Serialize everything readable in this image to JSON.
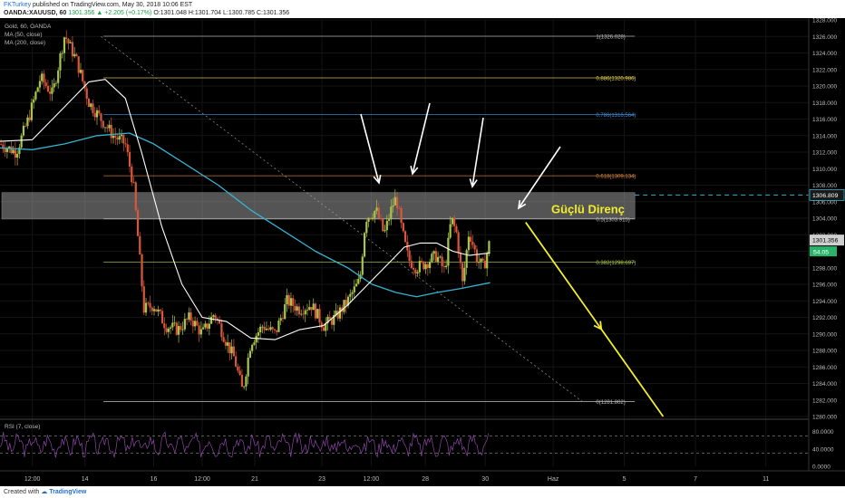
{
  "header": {
    "user": "FKTurkey",
    "published": "published on TradingView.com, May 30, 2018 10:06 EST",
    "ticker": "OANDA:XAUUSD, 60",
    "change": "1301.356 ▲ +2.205 (+0.17%)",
    "ohlc": "O:1301.048 H:1301.704 L:1300.785 C:1301.356"
  },
  "legend": {
    "symbol": "Gold, 60, OANDA",
    "ma50": "MA (50, close)",
    "ma200": "MA (200, close)",
    "rsi": "RSI (7, close)"
  },
  "footer": {
    "created_with": "Created with",
    "brand": "TradingView"
  },
  "colors": {
    "background": "#000000",
    "bull_candle": "#a8c64b",
    "bear_candle": "#d9573a",
    "ma50": "#ffffff",
    "ma200": "#36b3d1",
    "arrow_white": "#ffffff",
    "arrow_yellow": "#f2ee2a",
    "resistance_zone": "#9a9a9a",
    "rsi_line": "#8e46a8",
    "last_price_label": "#2bb36a"
  },
  "annotation": {
    "label": "Güçlü Direnç"
  },
  "chart_data": {
    "type": "candlestick",
    "ylim": [
      1280,
      1328
    ],
    "price_ticks": [
      "1328.000",
      "1326.000",
      "1324.000",
      "1322.000",
      "1320.000",
      "1318.000",
      "1316.000",
      "1314.000",
      "1312.000",
      "1310.000",
      "1308.000",
      "1306.000",
      "1304.000",
      "1302.000",
      "1300.000",
      "1298.000",
      "1296.000",
      "1294.000",
      "1292.000",
      "1290.000",
      "1288.000",
      "1286.000",
      "1284.000",
      "1282.000",
      "1280.000"
    ],
    "x_ticks": [
      {
        "label": "12:00",
        "pos": 0.04
      },
      {
        "label": "14",
        "pos": 0.105
      },
      {
        "label": "16",
        "pos": 0.19
      },
      {
        "label": "12:00",
        "pos": 0.25
      },
      {
        "label": "21",
        "pos": 0.315
      },
      {
        "label": "23",
        "pos": 0.398
      },
      {
        "label": "12:00",
        "pos": 0.459
      },
      {
        "label": "28",
        "pos": 0.526
      },
      {
        "label": "30",
        "pos": 0.6
      },
      {
        "label": "Haz",
        "pos": 0.684
      },
      {
        "label": "5",
        "pos": 0.772
      },
      {
        "label": "7",
        "pos": 0.86
      },
      {
        "label": "11",
        "pos": 0.947
      }
    ],
    "fib_levels": [
      {
        "label": "1(1326.028)",
        "value": 1326.028,
        "color": "#bbbbbb"
      },
      {
        "label": "0.886(1320.986)",
        "value": 1320.986,
        "color": "#e4d24a"
      },
      {
        "label": "0.786(1316.564)",
        "value": 1316.564,
        "color": "#3f8fd6"
      },
      {
        "label": "0.618(1309.134)",
        "value": 1309.134,
        "color": "#d9853a"
      },
      {
        "label": "0.5(1303.915)",
        "value": 1303.915,
        "color": "#bbbbbb"
      },
      {
        "label": "0.382(1298.697)",
        "value": 1298.697,
        "color": "#a8c64b"
      },
      {
        "label": "0(1281.802)",
        "value": 1281.802,
        "color": "#bbbbbb"
      }
    ],
    "resistance_zone": [
      1303.9,
      1307.1
    ],
    "resistance_level": {
      "label": "1306.809",
      "value": 1306.809
    },
    "last_price": {
      "label": "1301.356",
      "value": 1301.356
    },
    "second_label": "54.05",
    "close_path": [
      {
        "t": 0.0,
        "v": 1313
      },
      {
        "t": 0.02,
        "v": 1312
      },
      {
        "t": 0.035,
        "v": 1316
      },
      {
        "t": 0.05,
        "v": 1321
      },
      {
        "t": 0.065,
        "v": 1319
      },
      {
        "t": 0.08,
        "v": 1326.2
      },
      {
        "t": 0.095,
        "v": 1323
      },
      {
        "t": 0.11,
        "v": 1318
      },
      {
        "t": 0.125,
        "v": 1316
      },
      {
        "t": 0.14,
        "v": 1314
      },
      {
        "t": 0.155,
        "v": 1313
      },
      {
        "t": 0.165,
        "v": 1308
      },
      {
        "t": 0.172,
        "v": 1300
      },
      {
        "t": 0.178,
        "v": 1293
      },
      {
        "t": 0.19,
        "v": 1293.5
      },
      {
        "t": 0.205,
        "v": 1291
      },
      {
        "t": 0.22,
        "v": 1290.5
      },
      {
        "t": 0.235,
        "v": 1292
      },
      {
        "t": 0.25,
        "v": 1290
      },
      {
        "t": 0.265,
        "v": 1292.5
      },
      {
        "t": 0.28,
        "v": 1289
      },
      {
        "t": 0.29,
        "v": 1287
      },
      {
        "t": 0.3,
        "v": 1283
      },
      {
        "t": 0.31,
        "v": 1289
      },
      {
        "t": 0.325,
        "v": 1291
      },
      {
        "t": 0.34,
        "v": 1290
      },
      {
        "t": 0.355,
        "v": 1294
      },
      {
        "t": 0.37,
        "v": 1293
      },
      {
        "t": 0.385,
        "v": 1293.5
      },
      {
        "t": 0.4,
        "v": 1291
      },
      {
        "t": 0.415,
        "v": 1292
      },
      {
        "t": 0.43,
        "v": 1294
      },
      {
        "t": 0.445,
        "v": 1296.5
      },
      {
        "t": 0.452,
        "v": 1304
      },
      {
        "t": 0.465,
        "v": 1305
      },
      {
        "t": 0.475,
        "v": 1302
      },
      {
        "t": 0.485,
        "v": 1305.5
      },
      {
        "t": 0.49,
        "v": 1306.5
      },
      {
        "t": 0.497,
        "v": 1302.5
      },
      {
        "t": 0.505,
        "v": 1299
      },
      {
        "t": 0.515,
        "v": 1298
      },
      {
        "t": 0.525,
        "v": 1298.5
      },
      {
        "t": 0.54,
        "v": 1299.5
      },
      {
        "t": 0.55,
        "v": 1297.5
      },
      {
        "t": 0.558,
        "v": 1304
      },
      {
        "t": 0.565,
        "v": 1302
      },
      {
        "t": 0.572,
        "v": 1296
      },
      {
        "t": 0.58,
        "v": 1302.5
      },
      {
        "t": 0.59,
        "v": 1299
      },
      {
        "t": 0.598,
        "v": 1298
      },
      {
        "t": 0.606,
        "v": 1301.356
      }
    ],
    "ma50_path": [
      {
        "t": 0.0,
        "v": 1313.3
      },
      {
        "t": 0.04,
        "v": 1313.5
      },
      {
        "t": 0.08,
        "v": 1317.5
      },
      {
        "t": 0.11,
        "v": 1320.5
      },
      {
        "t": 0.13,
        "v": 1320.8
      },
      {
        "t": 0.155,
        "v": 1318.5
      },
      {
        "t": 0.175,
        "v": 1312
      },
      {
        "t": 0.2,
        "v": 1303
      },
      {
        "t": 0.225,
        "v": 1296
      },
      {
        "t": 0.25,
        "v": 1292
      },
      {
        "t": 0.28,
        "v": 1291.5
      },
      {
        "t": 0.31,
        "v": 1289.5
      },
      {
        "t": 0.34,
        "v": 1289.3
      },
      {
        "t": 0.37,
        "v": 1290.5
      },
      {
        "t": 0.4,
        "v": 1291
      },
      {
        "t": 0.43,
        "v": 1293.5
      },
      {
        "t": 0.455,
        "v": 1296
      },
      {
        "t": 0.48,
        "v": 1298.5
      },
      {
        "t": 0.5,
        "v": 1300.5
      },
      {
        "t": 0.52,
        "v": 1301
      },
      {
        "t": 0.54,
        "v": 1301
      },
      {
        "t": 0.56,
        "v": 1300
      },
      {
        "t": 0.58,
        "v": 1299.5
      },
      {
        "t": 0.606,
        "v": 1299.8
      }
    ],
    "ma200_path": [
      {
        "t": 0.0,
        "v": 1312.5
      },
      {
        "t": 0.04,
        "v": 1312.3
      },
      {
        "t": 0.08,
        "v": 1313
      },
      {
        "t": 0.12,
        "v": 1314
      },
      {
        "t": 0.16,
        "v": 1314.3
      },
      {
        "t": 0.19,
        "v": 1313
      },
      {
        "t": 0.23,
        "v": 1310.5
      },
      {
        "t": 0.27,
        "v": 1308
      },
      {
        "t": 0.31,
        "v": 1305
      },
      {
        "t": 0.35,
        "v": 1302.5
      },
      {
        "t": 0.39,
        "v": 1300
      },
      {
        "t": 0.43,
        "v": 1298
      },
      {
        "t": 0.46,
        "v": 1296
      },
      {
        "t": 0.49,
        "v": 1295
      },
      {
        "t": 0.515,
        "v": 1294.5
      },
      {
        "t": 0.54,
        "v": 1295
      },
      {
        "t": 0.57,
        "v": 1295.5
      },
      {
        "t": 0.606,
        "v": 1296.2
      }
    ],
    "trend_line": [
      {
        "t": 0.125,
        "v": 1326
      },
      {
        "t": 0.72,
        "v": 1281.8
      }
    ],
    "yellow_arrow": [
      {
        "t": 0.65,
        "v": 1303.5
      },
      {
        "t": 0.82,
        "v": 1280
      }
    ],
    "rsi": {
      "ylim": [
        0,
        100
      ],
      "ticks": [
        "80.0000",
        "40.0000",
        "0.0000"
      ],
      "levels": [
        70,
        30
      ]
    }
  }
}
